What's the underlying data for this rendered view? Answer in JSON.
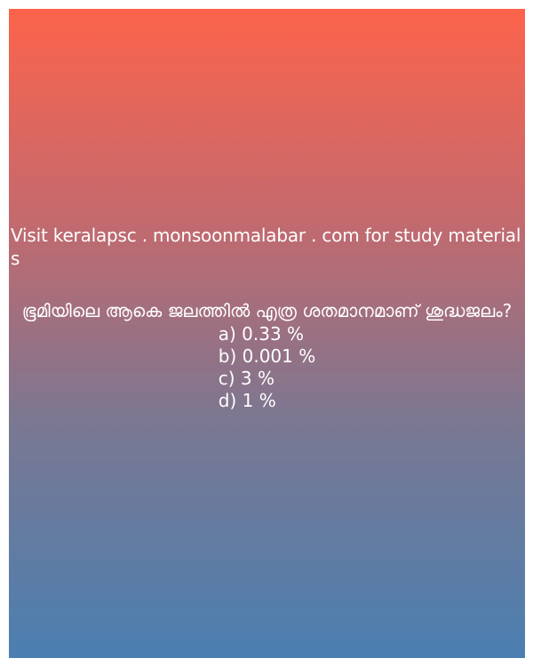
{
  "promo_text": "Visit keralapsc . monsoonmalabar . com for study materials",
  "question": "ഭൂമിയിലെ ആകെ ജലത്തിൽ എത്ര ശതമാനമാണ് ശുദ്ധജലം?",
  "options": [
    "a) 0.33 %",
    "b) 0.001 %",
    "c) 3 %",
    "d) 1 %"
  ],
  "colors": {
    "gradient_top": "#fc634b",
    "gradient_bottom": "#4b7fb1",
    "text": "#ffffff"
  }
}
